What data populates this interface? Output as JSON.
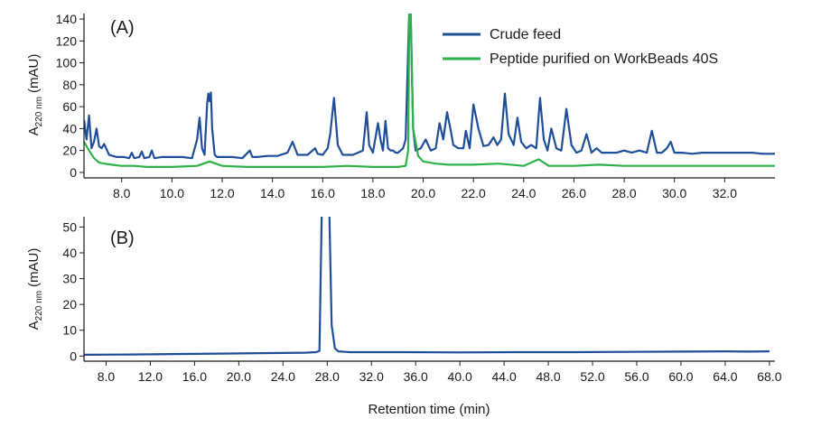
{
  "figure": {
    "xlabel_bottom": "Retention time (min)"
  },
  "legend": {
    "items": [
      {
        "label": "Crude feed",
        "color": "#1f4e99"
      },
      {
        "label": "Peptide purified on WorkBeads 40S",
        "color": "#2db24a"
      }
    ]
  },
  "chart_data": [
    {
      "type": "line",
      "panel_label": "(A)",
      "ylabel_main": "A",
      "ylabel_sub": "220 nm",
      "ylabel_unit": "(mAU)",
      "xlim": [
        6.5,
        34.0
      ],
      "ylim": [
        -5,
        145
      ],
      "xticks": [
        8.0,
        10.0,
        12.0,
        14.0,
        16.0,
        18.0,
        20.0,
        22.0,
        24.0,
        26.0,
        28.0,
        30.0,
        32.0
      ],
      "xtick_labels": [
        "8.0",
        "10.0",
        "12.0",
        "14.0",
        "16.0",
        "18.0",
        "20.0",
        "22.0",
        "24.0",
        "26.0",
        "28.0",
        "30.0",
        "32.0"
      ],
      "yticks": [
        0,
        20,
        40,
        60,
        80,
        100,
        120,
        140
      ],
      "ytick_labels": [
        "0",
        "20",
        "40",
        "60",
        "80",
        "100",
        "120",
        "140"
      ],
      "series": [
        {
          "name": "Crude feed",
          "color": "#1f4e99",
          "x": [
            6.5,
            6.6,
            6.7,
            6.8,
            6.9,
            7.0,
            7.1,
            7.2,
            7.3,
            7.5,
            7.8,
            8.1,
            8.3,
            8.4,
            8.5,
            8.7,
            8.8,
            8.9,
            9.1,
            9.2,
            9.3,
            9.6,
            10.0,
            10.4,
            10.8,
            11.0,
            11.1,
            11.2,
            11.3,
            11.4,
            11.45,
            11.5,
            11.55,
            11.6,
            11.7,
            11.8,
            12.0,
            12.4,
            12.8,
            13.1,
            13.2,
            13.4,
            13.8,
            14.2,
            14.6,
            14.8,
            15.0,
            15.4,
            15.7,
            15.8,
            16.0,
            16.2,
            16.3,
            16.45,
            16.6,
            16.8,
            17.2,
            17.6,
            17.75,
            17.85,
            18.0,
            18.2,
            18.3,
            18.4,
            18.5,
            18.6,
            18.7,
            18.8,
            18.9,
            19.0,
            19.1,
            19.2,
            19.3,
            19.45,
            19.5,
            19.6,
            19.7,
            19.9,
            20.1,
            20.3,
            20.5,
            20.65,
            20.8,
            20.95,
            21.1,
            21.2,
            21.4,
            21.6,
            21.7,
            21.85,
            22.0,
            22.2,
            22.4,
            22.6,
            22.8,
            22.95,
            23.1,
            23.25,
            23.4,
            23.6,
            23.75,
            23.9,
            24.1,
            24.3,
            24.5,
            24.65,
            24.8,
            24.95,
            25.1,
            25.3,
            25.5,
            25.7,
            25.9,
            26.1,
            26.3,
            26.5,
            26.7,
            26.9,
            27.1,
            27.4,
            27.7,
            28.0,
            28.3,
            28.6,
            28.9,
            29.1,
            29.3,
            29.5,
            29.7,
            29.85,
            30.0,
            30.3,
            30.7,
            31.1,
            31.5,
            31.9,
            32.3,
            32.7,
            33.1,
            33.5,
            34.0
          ],
          "y": [
            48,
            30,
            52,
            22,
            28,
            40,
            24,
            22,
            26,
            16,
            14,
            14,
            13,
            18,
            13,
            14,
            19,
            13,
            14,
            20,
            13,
            14,
            14,
            14,
            13,
            30,
            50,
            22,
            16,
            62,
            72,
            65,
            73,
            40,
            16,
            14,
            14,
            14,
            13,
            20,
            14,
            14,
            15,
            15,
            18,
            28,
            16,
            16,
            22,
            17,
            16,
            22,
            35,
            68,
            25,
            16,
            16,
            20,
            55,
            25,
            18,
            45,
            30,
            20,
            47,
            22,
            20,
            20,
            18,
            18,
            20,
            22,
            30,
            150,
            150,
            40,
            20,
            22,
            30,
            20,
            22,
            45,
            30,
            55,
            38,
            25,
            22,
            22,
            38,
            22,
            62,
            40,
            24,
            25,
            32,
            25,
            30,
            72,
            35,
            25,
            50,
            28,
            22,
            25,
            22,
            68,
            30,
            20,
            40,
            22,
            20,
            58,
            25,
            18,
            20,
            35,
            18,
            22,
            18,
            18,
            18,
            20,
            18,
            20,
            18,
            38,
            18,
            18,
            22,
            28,
            18,
            18,
            17,
            18,
            18,
            18,
            18,
            18,
            18,
            17,
            17
          ]
        },
        {
          "name": "Peptide purified on WorkBeads 40S",
          "color": "#2db24a",
          "x": [
            6.5,
            6.7,
            6.9,
            7.1,
            7.3,
            7.6,
            8.0,
            8.5,
            9.0,
            10.0,
            11.0,
            11.5,
            12.0,
            13.0,
            14.0,
            15.0,
            16.0,
            17.0,
            18.0,
            19.0,
            19.3,
            19.4,
            19.45,
            19.5,
            19.6,
            19.8,
            20.0,
            20.5,
            21.0,
            22.0,
            23.0,
            24.0,
            24.6,
            25.0,
            26.0,
            27.0,
            28.0,
            29.0,
            30.0,
            31.0,
            32.0,
            33.0,
            34.0
          ],
          "y": [
            28,
            20,
            13,
            9,
            8,
            7,
            6,
            6,
            5,
            5,
            6,
            10,
            6,
            5,
            5,
            5,
            5,
            6,
            5,
            5,
            6,
            20,
            150,
            150,
            40,
            15,
            10,
            8,
            7,
            7,
            8,
            6,
            12,
            6,
            6,
            7,
            6,
            6,
            6,
            6,
            6,
            6,
            6
          ]
        }
      ]
    },
    {
      "type": "line",
      "panel_label": "(B)",
      "ylabel_main": "A",
      "ylabel_sub": "220 nm",
      "ylabel_unit": "(mAU)",
      "xlabel": "Retention time (min)",
      "xlim": [
        6.0,
        68.5
      ],
      "ylim": [
        -2,
        54
      ],
      "xticks": [
        8.0,
        12.0,
        16.0,
        20.0,
        24.0,
        28.0,
        32.0,
        36.0,
        40.0,
        44.0,
        48.0,
        52.0,
        56.0,
        60.0,
        64.0,
        68.0
      ],
      "xtick_labels": [
        "8.0",
        "12.0",
        "16.0",
        "20.0",
        "24.0",
        "28.0",
        "32.0",
        "36.0",
        "40.0",
        "44.0",
        "48.0",
        "52.0",
        "56.0",
        "60.0",
        "64.0",
        "68.0"
      ],
      "yticks": [
        0,
        10,
        20,
        30,
        40,
        50
      ],
      "ytick_labels": [
        "0",
        "10",
        "20",
        "30",
        "40",
        "50"
      ],
      "series": [
        {
          "name": "Crude feed",
          "color": "#1f4e99",
          "x": [
            6.0,
            10.0,
            15.0,
            20.0,
            24.0,
            26.0,
            27.0,
            27.3,
            27.5,
            27.6,
            28.2,
            28.4,
            28.7,
            29.0,
            30.0,
            35.0,
            40.0,
            45.0,
            50.0,
            55.0,
            60.0,
            64.0,
            66.0,
            68.0
          ],
          "y": [
            0.5,
            0.6,
            0.8,
            1.0,
            1.2,
            1.3,
            1.5,
            2.0,
            55,
            55,
            55,
            12,
            3,
            1.8,
            1.5,
            1.5,
            1.4,
            1.5,
            1.5,
            1.6,
            1.7,
            1.8,
            1.7,
            1.8
          ]
        }
      ]
    }
  ]
}
